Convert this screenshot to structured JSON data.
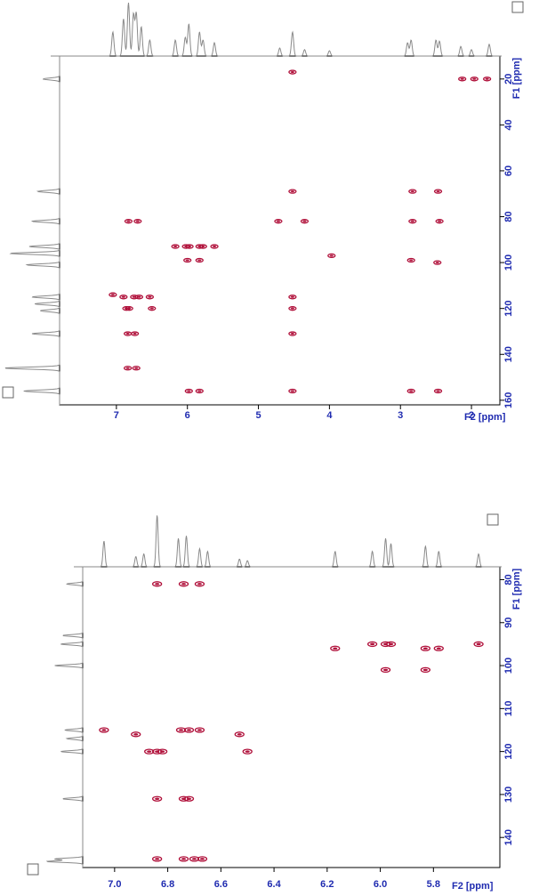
{
  "colors": {
    "axis": "#1f2bb0",
    "contour": "#b0103a",
    "trace": "#8a8a8a",
    "frame": "#000000"
  },
  "chart_data": [
    {
      "type": "scatter",
      "title": "",
      "xlabel": "F2 [ppm]",
      "ylabel": "F1 [ppm]",
      "xlim": [
        7.8,
        1.6
      ],
      "ylim": [
        10,
        162
      ],
      "x_ticks": [
        "7",
        "6",
        "5",
        "4",
        "3",
        "2"
      ],
      "y_ticks": [
        "20",
        "40",
        "60",
        "80",
        "100",
        "120",
        "140",
        "160"
      ],
      "projection_f2": [
        [
          7.05,
          0.45
        ],
        [
          6.9,
          0.7
        ],
        [
          6.83,
          1.0
        ],
        [
          6.76,
          0.78
        ],
        [
          6.72,
          0.8
        ],
        [
          6.65,
          0.55
        ],
        [
          6.53,
          0.3
        ],
        [
          6.17,
          0.3
        ],
        [
          6.03,
          0.35
        ],
        [
          5.98,
          0.6
        ],
        [
          5.83,
          0.45
        ],
        [
          5.78,
          0.3
        ],
        [
          5.62,
          0.25
        ],
        [
          4.7,
          0.15
        ],
        [
          4.52,
          0.45
        ],
        [
          4.35,
          0.12
        ],
        [
          4.0,
          0.1
        ],
        [
          2.9,
          0.25
        ],
        [
          2.85,
          0.3
        ],
        [
          2.5,
          0.3
        ],
        [
          2.45,
          0.28
        ],
        [
          2.15,
          0.18
        ],
        [
          2.0,
          0.12
        ],
        [
          1.75,
          0.22
        ]
      ],
      "projection_f1": [
        [
          20,
          0.3
        ],
        [
          69,
          0.4
        ],
        [
          82,
          0.5
        ],
        [
          93,
          0.55
        ],
        [
          96,
          0.9
        ],
        [
          101,
          0.6
        ],
        [
          115,
          0.5
        ],
        [
          118,
          0.45
        ],
        [
          121,
          0.35
        ],
        [
          131,
          0.5
        ],
        [
          146,
          1.0
        ],
        [
          156,
          0.65
        ]
      ],
      "peaks": [
        {
          "x": 4.52,
          "y": 17
        },
        {
          "x": 1.78,
          "y": 20
        },
        {
          "x": 2.13,
          "y": 20
        },
        {
          "x": 1.96,
          "y": 20
        },
        {
          "x": 4.52,
          "y": 69
        },
        {
          "x": 2.83,
          "y": 69
        },
        {
          "x": 2.47,
          "y": 69
        },
        {
          "x": 6.83,
          "y": 82
        },
        {
          "x": 6.7,
          "y": 82
        },
        {
          "x": 4.72,
          "y": 82
        },
        {
          "x": 4.35,
          "y": 82
        },
        {
          "x": 2.83,
          "y": 82
        },
        {
          "x": 2.45,
          "y": 82
        },
        {
          "x": 6.17,
          "y": 93
        },
        {
          "x": 6.02,
          "y": 93
        },
        {
          "x": 5.97,
          "y": 93
        },
        {
          "x": 5.83,
          "y": 93
        },
        {
          "x": 5.78,
          "y": 93
        },
        {
          "x": 5.62,
          "y": 93
        },
        {
          "x": 6.0,
          "y": 99
        },
        {
          "x": 5.83,
          "y": 99
        },
        {
          "x": 3.97,
          "y": 97
        },
        {
          "x": 2.85,
          "y": 99
        },
        {
          "x": 2.48,
          "y": 100
        },
        {
          "x": 7.05,
          "y": 114
        },
        {
          "x": 6.9,
          "y": 115
        },
        {
          "x": 6.75,
          "y": 115
        },
        {
          "x": 6.68,
          "y": 115
        },
        {
          "x": 6.53,
          "y": 115
        },
        {
          "x": 4.52,
          "y": 115
        },
        {
          "x": 6.86,
          "y": 120
        },
        {
          "x": 6.82,
          "y": 120
        },
        {
          "x": 6.5,
          "y": 120
        },
        {
          "x": 4.52,
          "y": 120
        },
        {
          "x": 6.84,
          "y": 131
        },
        {
          "x": 6.74,
          "y": 131
        },
        {
          "x": 4.52,
          "y": 131
        },
        {
          "x": 6.84,
          "y": 146
        },
        {
          "x": 6.72,
          "y": 146
        },
        {
          "x": 5.98,
          "y": 156
        },
        {
          "x": 5.83,
          "y": 156
        },
        {
          "x": 4.52,
          "y": 156
        },
        {
          "x": 2.85,
          "y": 156
        },
        {
          "x": 2.47,
          "y": 156
        }
      ]
    },
    {
      "type": "scatter",
      "title": "",
      "xlabel": "F2 [ppm]",
      "ylabel": "F1 [ppm]",
      "xlim": [
        7.12,
        5.55
      ],
      "ylim": [
        77,
        147
      ],
      "x_ticks": [
        "7.0",
        "6.8",
        "6.6",
        "6.4",
        "6.2",
        "6.0",
        "5.8"
      ],
      "y_ticks": [
        "80",
        "90",
        "100",
        "110",
        "120",
        "130",
        "140"
      ],
      "projection_f2": [
        [
          7.04,
          0.5
        ],
        [
          6.92,
          0.2
        ],
        [
          6.89,
          0.25
        ],
        [
          6.84,
          1.0
        ],
        [
          6.76,
          0.55
        ],
        [
          6.73,
          0.6
        ],
        [
          6.68,
          0.35
        ],
        [
          6.65,
          0.3
        ],
        [
          6.53,
          0.15
        ],
        [
          6.5,
          0.12
        ],
        [
          6.17,
          0.3
        ],
        [
          6.03,
          0.3
        ],
        [
          5.98,
          0.55
        ],
        [
          5.96,
          0.45
        ],
        [
          5.83,
          0.4
        ],
        [
          5.78,
          0.3
        ],
        [
          5.63,
          0.25
        ]
      ],
      "projection_f1": [
        [
          81,
          0.4
        ],
        [
          93,
          0.5
        ],
        [
          95,
          0.55
        ],
        [
          100,
          0.7
        ],
        [
          115,
          0.45
        ],
        [
          117,
          0.4
        ],
        [
          120,
          0.55
        ],
        [
          131,
          0.5
        ],
        [
          145,
          0.7
        ],
        [
          145.6,
          0.9
        ]
      ],
      "peaks": [
        {
          "x": 6.84,
          "y": 81
        },
        {
          "x": 6.74,
          "y": 81
        },
        {
          "x": 6.68,
          "y": 81
        },
        {
          "x": 6.17,
          "y": 96
        },
        {
          "x": 6.03,
          "y": 95
        },
        {
          "x": 5.98,
          "y": 95
        },
        {
          "x": 5.96,
          "y": 95
        },
        {
          "x": 5.83,
          "y": 96
        },
        {
          "x": 5.78,
          "y": 96
        },
        {
          "x": 5.63,
          "y": 95
        },
        {
          "x": 5.98,
          "y": 101
        },
        {
          "x": 5.83,
          "y": 101
        },
        {
          "x": 7.04,
          "y": 115
        },
        {
          "x": 6.92,
          "y": 116
        },
        {
          "x": 6.75,
          "y": 115
        },
        {
          "x": 6.72,
          "y": 115
        },
        {
          "x": 6.68,
          "y": 115
        },
        {
          "x": 6.53,
          "y": 116
        },
        {
          "x": 6.87,
          "y": 120
        },
        {
          "x": 6.84,
          "y": 120
        },
        {
          "x": 6.82,
          "y": 120
        },
        {
          "x": 6.5,
          "y": 120
        },
        {
          "x": 6.84,
          "y": 131
        },
        {
          "x": 6.74,
          "y": 131
        },
        {
          "x": 6.72,
          "y": 131
        },
        {
          "x": 6.84,
          "y": 145
        },
        {
          "x": 6.74,
          "y": 145
        },
        {
          "x": 6.7,
          "y": 145
        },
        {
          "x": 6.67,
          "y": 145
        }
      ]
    }
  ]
}
